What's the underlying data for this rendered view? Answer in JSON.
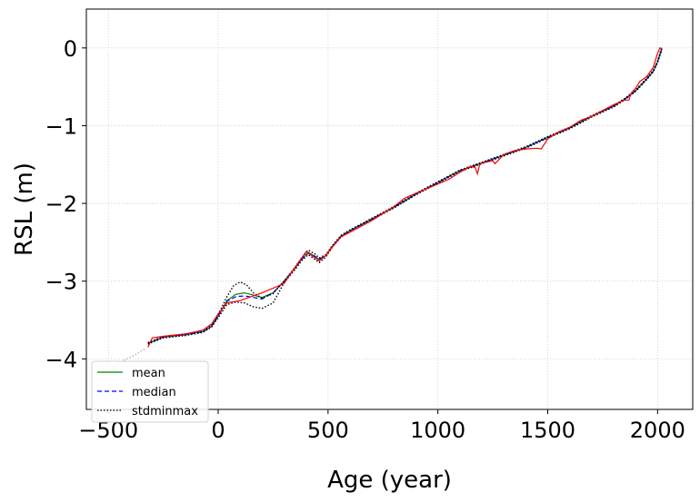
{
  "chart_data": {
    "type": "line",
    "xlabel": "Age (year)",
    "ylabel": "RSL (m)",
    "xlim": [
      -600,
      2160
    ],
    "ylim": [
      -4.65,
      0.5
    ],
    "xticks": [
      -500,
      0,
      500,
      1000,
      1500,
      2000
    ],
    "xtick_labels": [
      "−500",
      "0",
      "500",
      "1000",
      "1500",
      "2000"
    ],
    "yticks": [
      0,
      -1,
      -2,
      -3,
      -4
    ],
    "ytick_labels": [
      "0",
      "−1",
      "−2",
      "−3",
      "−4"
    ],
    "grid": true,
    "legend_position": "lower-left",
    "series": [
      {
        "name": "mean",
        "color": "#008000",
        "style": "solid",
        "x": [
          -320,
          -250,
          -150,
          -70,
          -30,
          0,
          40,
          80,
          120,
          160,
          200,
          250,
          300,
          350,
          380,
          410,
          440,
          460,
          490,
          520,
          560,
          600,
          700,
          800,
          900,
          1000,
          1100,
          1200,
          1300,
          1400,
          1500,
          1600,
          1700,
          1800,
          1850,
          1900,
          1950,
          1980,
          2000,
          2020
        ],
        "y": [
          -3.8,
          -3.72,
          -3.69,
          -3.65,
          -3.58,
          -3.45,
          -3.25,
          -3.17,
          -3.15,
          -3.18,
          -3.21,
          -3.15,
          -3.0,
          -2.83,
          -2.72,
          -2.63,
          -2.68,
          -2.72,
          -2.67,
          -2.55,
          -2.42,
          -2.35,
          -2.2,
          -2.05,
          -1.88,
          -1.73,
          -1.58,
          -1.48,
          -1.38,
          -1.28,
          -1.15,
          -1.03,
          -0.88,
          -0.75,
          -0.66,
          -0.55,
          -0.4,
          -0.3,
          -0.18,
          0.0
        ]
      },
      {
        "name": "median",
        "color": "#0000ff",
        "style": "dashed",
        "x": [
          -320,
          -250,
          -150,
          -70,
          -30,
          0,
          40,
          80,
          120,
          160,
          200,
          250,
          300,
          350,
          380,
          410,
          440,
          460,
          490,
          520,
          560,
          600,
          700,
          800,
          900,
          1000,
          1100,
          1200,
          1300,
          1400,
          1500,
          1600,
          1700,
          1800,
          1850,
          1900,
          1950,
          1980,
          2000,
          2020
        ],
        "y": [
          -3.8,
          -3.72,
          -3.69,
          -3.65,
          -3.58,
          -3.45,
          -3.26,
          -3.2,
          -3.19,
          -3.21,
          -3.23,
          -3.15,
          -3.0,
          -2.83,
          -2.72,
          -2.64,
          -2.68,
          -2.72,
          -2.67,
          -2.55,
          -2.42,
          -2.35,
          -2.2,
          -2.05,
          -1.88,
          -1.73,
          -1.58,
          -1.48,
          -1.38,
          -1.28,
          -1.15,
          -1.03,
          -0.88,
          -0.75,
          -0.66,
          -0.55,
          -0.4,
          -0.3,
          -0.18,
          0.0
        ]
      },
      {
        "name": "stdminmax",
        "color": "#000000",
        "style": "dotted",
        "x": [
          -320,
          -250,
          -150,
          -70,
          -30,
          0,
          40,
          70,
          100,
          130,
          160,
          200,
          250,
          300,
          350,
          380,
          410,
          440,
          460,
          490,
          520,
          560,
          600,
          700,
          800,
          900,
          1000,
          1100,
          1200,
          1300,
          1400,
          1500,
          1600,
          1700,
          1800,
          1850,
          1900,
          1950,
          1980,
          2000,
          2020
        ],
        "y": [
          -3.79,
          -3.71,
          -3.68,
          -3.64,
          -3.57,
          -3.43,
          -3.2,
          -3.06,
          -3.01,
          -3.05,
          -3.15,
          -3.22,
          -3.16,
          -3.0,
          -2.82,
          -2.7,
          -2.6,
          -2.65,
          -2.7,
          -2.66,
          -2.54,
          -2.41,
          -2.34,
          -2.19,
          -2.04,
          -1.87,
          -1.72,
          -1.57,
          -1.47,
          -1.37,
          -1.27,
          -1.14,
          -1.02,
          -0.87,
          -0.74,
          -0.65,
          -0.54,
          -0.39,
          -0.29,
          -0.17,
          0.02
        ]
      },
      {
        "name": "",
        "color": "#000000",
        "style": "dotted",
        "x": [
          -320,
          -250,
          -150,
          -70,
          -30,
          0,
          40,
          80,
          120,
          160,
          200,
          250,
          300,
          350,
          380,
          410,
          440,
          460,
          490,
          520,
          560,
          600,
          700,
          800,
          900,
          1000,
          1100,
          1200,
          1300,
          1400,
          1500,
          1600,
          1700,
          1800,
          1850,
          1900,
          1950,
          1980,
          2000,
          2020
        ],
        "y": [
          -3.81,
          -3.73,
          -3.7,
          -3.66,
          -3.59,
          -3.47,
          -3.3,
          -3.27,
          -3.28,
          -3.33,
          -3.35,
          -3.28,
          -3.02,
          -2.85,
          -2.74,
          -2.66,
          -2.72,
          -2.76,
          -2.69,
          -2.56,
          -2.43,
          -2.36,
          -2.21,
          -2.06,
          -1.89,
          -1.74,
          -1.59,
          -1.49,
          -1.39,
          -1.29,
          -1.16,
          -1.04,
          -0.89,
          -0.76,
          -0.67,
          -0.56,
          -0.41,
          -0.31,
          -0.19,
          -0.02
        ]
      },
      {
        "name": "",
        "color": "#ff0000",
        "style": "solid",
        "x": [
          -320,
          -300,
          -250,
          -150,
          -70,
          -30,
          0,
          40,
          100,
          200,
          300,
          350,
          400,
          430,
          460,
          490,
          520,
          560,
          600,
          700,
          800,
          850,
          900,
          1000,
          1050,
          1100,
          1150,
          1170,
          1180,
          1190,
          1200,
          1250,
          1260,
          1300,
          1350,
          1400,
          1450,
          1470,
          1500,
          1550,
          1600,
          1650,
          1700,
          1800,
          1850,
          1870,
          1880,
          1900,
          1920,
          1950,
          1980,
          2000,
          2010,
          2020
        ],
        "y": [
          -3.85,
          -3.73,
          -3.71,
          -3.68,
          -3.63,
          -3.55,
          -3.42,
          -3.28,
          -3.25,
          -3.15,
          -3.03,
          -2.82,
          -2.62,
          -2.68,
          -2.74,
          -2.67,
          -2.56,
          -2.43,
          -2.37,
          -2.22,
          -2.04,
          -1.93,
          -1.87,
          -1.75,
          -1.69,
          -1.6,
          -1.52,
          -1.54,
          -1.62,
          -1.5,
          -1.48,
          -1.45,
          -1.49,
          -1.37,
          -1.32,
          -1.3,
          -1.29,
          -1.3,
          -1.17,
          -1.08,
          -1.02,
          -0.93,
          -0.88,
          -0.73,
          -0.67,
          -0.67,
          -0.58,
          -0.52,
          -0.43,
          -0.37,
          -0.25,
          -0.07,
          0.0,
          -0.01
        ]
      },
      {
        "name": "",
        "color": "#b0b0b0",
        "style": "dotted",
        "x": [
          -480,
          -430,
          -380,
          -330
        ],
        "y": [
          -4.1,
          -4.02,
          -3.95,
          -3.86
        ]
      }
    ],
    "legend": [
      {
        "label": "mean",
        "color": "#008000",
        "style": "solid"
      },
      {
        "label": "median",
        "color": "#0000ff",
        "style": "dashed"
      },
      {
        "label": "stdminmax",
        "color": "#000000",
        "style": "dotted"
      }
    ]
  }
}
